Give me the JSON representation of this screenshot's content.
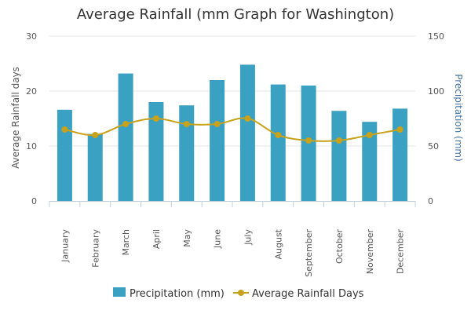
{
  "chart_data": {
    "type": "bar",
    "title": "Average Rainfall (mm Graph for Washington)",
    "categories": [
      "January",
      "February",
      "March",
      "April",
      "May",
      "June",
      "July",
      "August",
      "September",
      "October",
      "November",
      "December"
    ],
    "left_axis": {
      "title": "Average Rainfall days",
      "min": 0,
      "max": 30,
      "ticks": [
        "0",
        "10",
        "20",
        "30"
      ]
    },
    "right_axis": {
      "title": "Precipitation (mm)",
      "min": 0,
      "max": 150,
      "ticks": [
        "0",
        "50",
        "100",
        "150"
      ]
    },
    "series": [
      {
        "name": "Precipitation (mm)",
        "type": "bar",
        "axis": "right",
        "color": "#3ba1c3",
        "values": [
          83,
          61,
          116,
          90,
          87,
          110,
          124,
          106,
          105,
          82,
          72,
          84
        ]
      },
      {
        "name": "Average Rainfall Days",
        "type": "line",
        "axis": "left",
        "color": "#c8a21a",
        "values": [
          13,
          12,
          14,
          15,
          14,
          14,
          15,
          12,
          11,
          11,
          12,
          13
        ]
      }
    ],
    "grid": true,
    "legend": "bottom-center"
  }
}
